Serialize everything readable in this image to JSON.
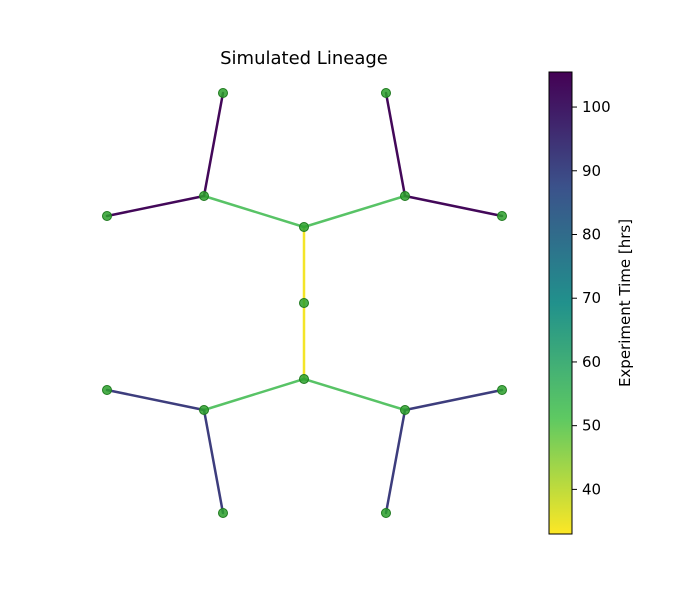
{
  "title": "Simulated Lineage",
  "colorbar": {
    "label": "Experiment Time [hrs]",
    "min": 33,
    "max": 105.5,
    "ticks": [
      40,
      50,
      60,
      70,
      80,
      90,
      100
    ],
    "colormap": "viridis_r"
  },
  "colors": {
    "node_fill": "#2ca02c",
    "node_edge": "#1f7a1f"
  },
  "chart_data": {
    "type": "lineage-tree",
    "nodes": [
      {
        "id": "root"
      },
      {
        "id": "top"
      },
      {
        "id": "bottom"
      },
      {
        "id": "tl"
      },
      {
        "id": "tr"
      },
      {
        "id": "bl"
      },
      {
        "id": "br"
      },
      {
        "id": "tl-a"
      },
      {
        "id": "tl-b"
      },
      {
        "id": "tr-a"
      },
      {
        "id": "tr-b"
      },
      {
        "id": "bl-a"
      },
      {
        "id": "bl-b"
      },
      {
        "id": "br-a"
      },
      {
        "id": "br-b"
      }
    ],
    "edges": [
      {
        "from": "root",
        "to": "top",
        "time": 34
      },
      {
        "from": "root",
        "to": "bottom",
        "time": 34
      },
      {
        "from": "top",
        "to": "tl",
        "time": 53
      },
      {
        "from": "top",
        "to": "tr",
        "time": 53
      },
      {
        "from": "bottom",
        "to": "bl",
        "time": 53
      },
      {
        "from": "bottom",
        "to": "br",
        "time": 53
      },
      {
        "from": "tl",
        "to": "tl-a",
        "time": 104
      },
      {
        "from": "tl",
        "to": "tl-b",
        "time": 104
      },
      {
        "from": "tr",
        "to": "tr-a",
        "time": 104
      },
      {
        "from": "tr",
        "to": "tr-b",
        "time": 104
      },
      {
        "from": "bl",
        "to": "bl-a",
        "time": 92
      },
      {
        "from": "bl",
        "to": "bl-b",
        "time": 92
      },
      {
        "from": "br",
        "to": "br-a",
        "time": 92
      },
      {
        "from": "br",
        "to": "br-b",
        "time": 92
      }
    ]
  }
}
